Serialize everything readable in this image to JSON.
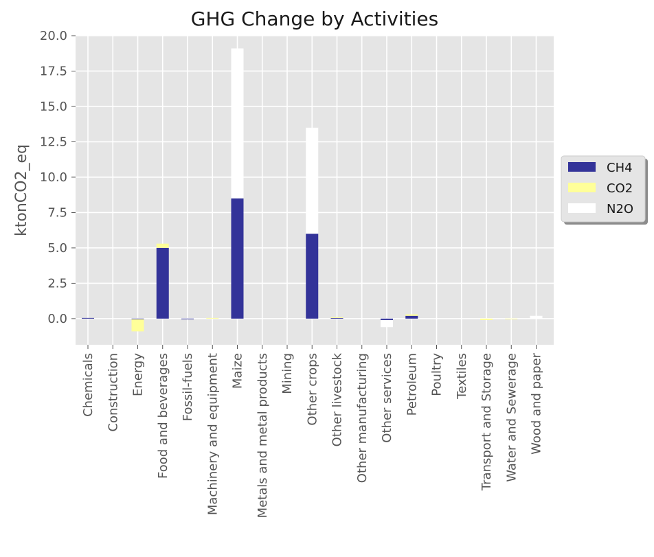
{
  "chart_data": {
    "type": "bar",
    "stacked": true,
    "title": "GHG Change by Activities",
    "xlabel": "",
    "ylabel": "ktonCO2_eq",
    "ylim": [
      -1.85,
      20.0
    ],
    "yticks": [
      "0.0",
      "2.5",
      "5.0",
      "7.5",
      "10.0",
      "12.5",
      "15.0",
      "17.5",
      "20.0"
    ],
    "grid": true,
    "legend_position": "outside-right",
    "categories": [
      "Chemicals",
      "Construction",
      "Energy",
      "Food and beverages",
      "Fossil-fuels",
      "Machinery and equipment",
      "Maize",
      "Metals and metal products",
      "Mining",
      "Other crops",
      "Other livestock",
      "Other manufacturing",
      "Other services",
      "Petroleum",
      "Poultry",
      "Textiles",
      "Transport and Storage",
      "Water and Sewerage",
      "Wood and paper"
    ],
    "series": [
      {
        "name": "CH4",
        "color": "#333399",
        "values": [
          0.05,
          0.0,
          -0.05,
          5.0,
          -0.05,
          0.0,
          8.5,
          0.0,
          0.0,
          6.0,
          0.05,
          0.0,
          -0.1,
          0.2,
          0.0,
          0.0,
          0.0,
          0.0,
          0.0
        ]
      },
      {
        "name": "CO2",
        "color": "#ffff99",
        "values": [
          0.0,
          0.0,
          -0.85,
          0.3,
          0.0,
          0.05,
          0.0,
          0.0,
          0.0,
          0.0,
          0.05,
          0.0,
          0.0,
          0.1,
          0.0,
          0.0,
          -0.1,
          -0.05,
          0.0
        ]
      },
      {
        "name": "N2O",
        "color": "#ffffff",
        "values": [
          0.0,
          0.0,
          0.0,
          0.0,
          0.0,
          0.0,
          10.6,
          0.0,
          0.0,
          7.5,
          0.0,
          0.0,
          -0.5,
          0.0,
          0.0,
          0.0,
          0.0,
          0.0,
          0.2
        ]
      }
    ]
  },
  "colors": {
    "plot_background": "#e5e5e5",
    "grid": "#ffffff",
    "text": "#555555"
  }
}
